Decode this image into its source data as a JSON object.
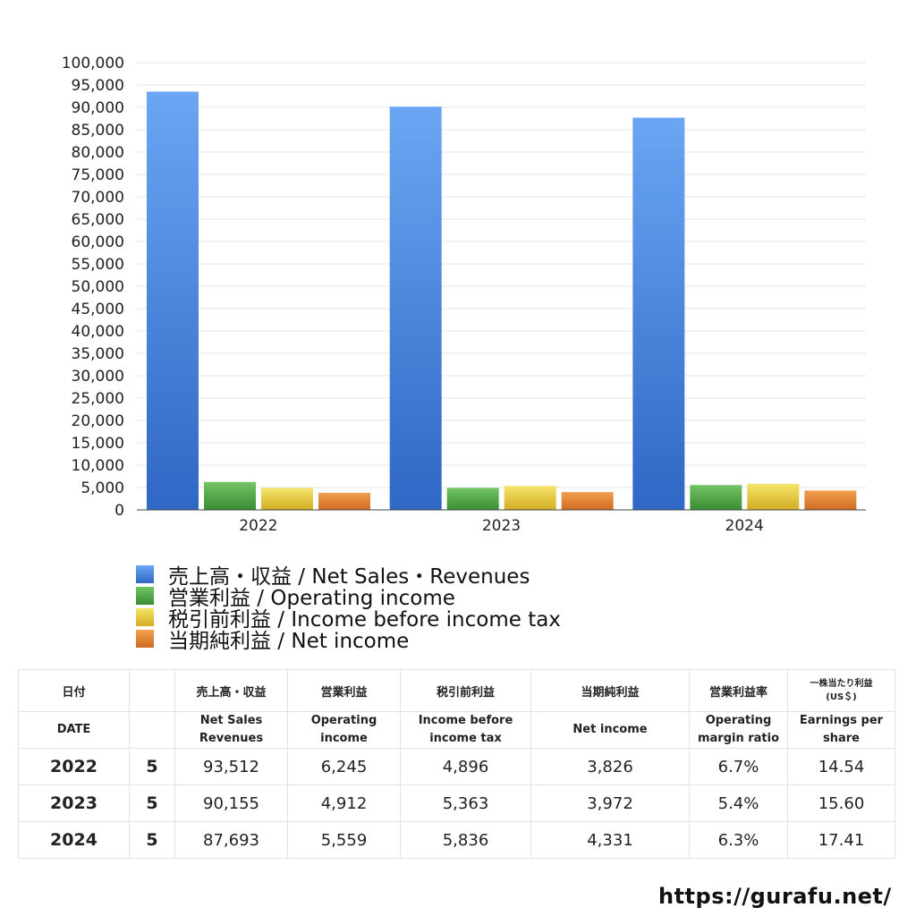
{
  "chart_data": {
    "type": "bar",
    "categories": [
      "2022",
      "2023",
      "2024"
    ],
    "ylim": [
      0,
      100000
    ],
    "ytick_step": 5000,
    "grid": true,
    "series": [
      {
        "name": "売上高・収益 / Net Sales・Revenues",
        "values": [
          93512,
          90155,
          87693
        ],
        "color": "#4a86e0"
      },
      {
        "name": "営業利益 / Operating income",
        "values": [
          6245,
          4912,
          5559
        ],
        "color": "#4fa84a"
      },
      {
        "name": "税引前利益 / Income before income tax",
        "values": [
          4896,
          5363,
          5836
        ],
        "color": "#e6c93a"
      },
      {
        "name": "当期純利益 / Net income",
        "values": [
          3826,
          3972,
          4331
        ],
        "color": "#e07f33"
      }
    ],
    "legend_position": "bottom-left"
  },
  "table": {
    "headers_jp": [
      "日付",
      "売上高・収益",
      "営業利益",
      "税引前利益",
      "当期純利益",
      "営業利益率",
      "一株当たり利益",
      "(US＄)"
    ],
    "headers_en": {
      "date": "DATE",
      "sales_1": "Net Sales",
      "sales_2": "Revenues",
      "op_1": "Operating",
      "op_2": "income",
      "pre_1": "Income before",
      "pre_2": "income tax",
      "net": "Net income",
      "margin_1": "Operating",
      "margin_2": "margin ratio",
      "eps_1": "Earnings per",
      "eps_2": "share"
    },
    "rows": [
      {
        "year": "2022",
        "month": "5",
        "sales": "93,512",
        "op": "6,245",
        "pre": "4,896",
        "net": "3,826",
        "margin": "6.7%",
        "eps": "14.54"
      },
      {
        "year": "2023",
        "month": "5",
        "sales": "90,155",
        "op": "4,912",
        "pre": "5,363",
        "net": "3,972",
        "margin": "5.4%",
        "eps": "15.60"
      },
      {
        "year": "2024",
        "month": "5",
        "sales": "87,693",
        "op": "5,559",
        "pre": "5,836",
        "net": "4,331",
        "margin": "6.3%",
        "eps": "17.41"
      }
    ]
  },
  "footer": {
    "url": "https://gurafu.net/"
  }
}
